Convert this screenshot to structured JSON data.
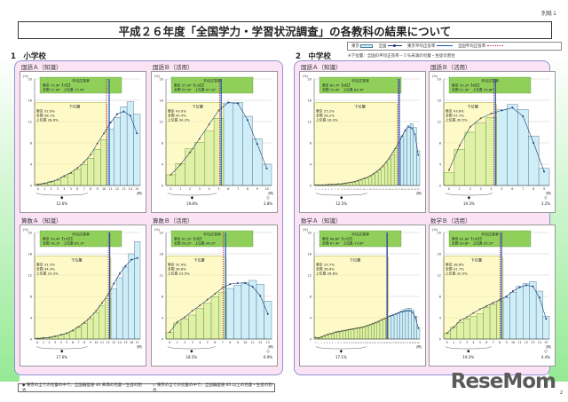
{
  "page_note": "別紙１",
  "title": "平成２６年度「全国学力・学習状況調査」の各教科の結果について",
  "legend": {
    "tokyo": "東京",
    "national": "全国",
    "tokyo_avg": "東京平均正答率",
    "national_avg": "全国平均正答率"
  },
  "note": "※下位層：全国の平均正答率－５％未満の児童・生徒の割合",
  "sections": {
    "elementary": "1　小学校",
    "middle": "2　中学校"
  },
  "y_axis_label": "児童の割合",
  "x_axis_unit": "(問)",
  "x_axis_unit2": "正答数",
  "footer": {
    "item1": "◆ 東京の全ての児童の中で、全国偏差値 40 未満の児童・生徒の割合",
    "item2": "◇ 東京の全ての児童の中で、全国偏差値 65 以上の児童・生徒の割合"
  },
  "watermark": "ReseMom",
  "page_number": "2",
  "colors": {
    "panel_bg": "#fbe3f5",
    "panel_border": "#8e95cf",
    "bar_low": "#d8f0a8",
    "bar_high": "#cfeef8",
    "avg_box": "#8fcf5a",
    "lower_box": "#fbf59a",
    "tokyo_line": "#1a56b3",
    "national_line": "#c0205a",
    "national_curve": "#1b3a7a"
  },
  "chart_data": [
    {
      "id": "elem_kokugo_a",
      "type": "bar",
      "title": "国語Ａ（知識）",
      "ylabel": "(%)",
      "ylim": [
        0,
        20
      ],
      "yticks": [
        0,
        4,
        8,
        12,
        16,
        20
      ],
      "categories": [
        "0",
        "1",
        "2",
        "3",
        "4",
        "5",
        "6",
        "7",
        "8",
        "9",
        "10",
        "11",
        "12",
        "13",
        "14",
        "15"
      ],
      "tokyo": [
        0.2,
        0.4,
        0.7,
        1.0,
        1.6,
        2.2,
        3.0,
        3.9,
        5.1,
        6.8,
        8.6,
        10.6,
        12.8,
        14.8,
        15.7,
        13.4
      ],
      "national": [
        0.2,
        0.4,
        0.7,
        1.1,
        1.8,
        2.4,
        3.3,
        4.4,
        5.8,
        7.9,
        9.8,
        11.8,
        13.4,
        13.9,
        13.1,
        9.8
      ],
      "lower_upto": 10,
      "tokyo_avg_x": 11.3,
      "national_avg_x": 10.9,
      "avg_box": {
        "title": "平均正答率",
        "line1": "東京 75.5P【7位】",
        "line2": "全国 72.9P　上位県 77.4P"
      },
      "lower_box": {
        "title": "下位層",
        "line1": "東京 32.9%",
        "line2": "全国 38.1%",
        "line3": "上位県 28.6%"
      },
      "low_pct": "12.6%",
      "high_pct": ""
    },
    {
      "id": "elem_kokugo_b",
      "type": "bar",
      "title": "国語Ｂ（活用）",
      "ylabel": "(%)",
      "ylim": [
        0,
        20
      ],
      "yticks": [
        0,
        4,
        8,
        12,
        16,
        20
      ],
      "categories": [
        "0",
        "1",
        "2",
        "3",
        "4",
        "5",
        "6",
        "7",
        "8",
        "9",
        "10"
      ],
      "tokyo": [
        2.0,
        4.1,
        6.9,
        8.1,
        10.2,
        12.6,
        15.5,
        15.6,
        13.0,
        8.8,
        4.0
      ],
      "national": [
        2.0,
        3.9,
        6.2,
        8.8,
        11.5,
        14.1,
        15.6,
        15.4,
        12.3,
        7.8,
        3.2
      ],
      "lower_upto": 5,
      "tokyo_avg_x": 5.75,
      "national_avg_x": 5.6,
      "avg_box": {
        "title": "平均正答率",
        "line1": "東京 57.2P【13位】",
        "line2": "全国 55.5P　上位県 67.2P"
      },
      "lower_box": {
        "title": "下位層",
        "line1": "東京 43.0%",
        "line2": "全国 45.4%",
        "line3": "上位県 34.3%"
      },
      "low_pct": "19.8%",
      "high_pct": "3.8%"
    },
    {
      "id": "elem_sansu_a",
      "type": "bar",
      "title": "算数Ａ（知識）",
      "ylabel": "(%)",
      "ylim": [
        0,
        20
      ],
      "yticks": [
        0,
        4,
        8,
        12,
        16,
        20
      ],
      "categories": [
        "0",
        "1",
        "2",
        "3",
        "4",
        "5",
        "6",
        "7",
        "8",
        "9",
        "10",
        "11",
        "12",
        "13",
        "14",
        "15",
        "16",
        "17"
      ],
      "tokyo": [
        0.1,
        0.2,
        0.3,
        0.5,
        0.7,
        1.0,
        1.5,
        2.2,
        2.9,
        3.7,
        4.9,
        6.3,
        7.6,
        9.4,
        11.5,
        13.5,
        16.0,
        18.3
      ],
      "national": [
        0.1,
        0.2,
        0.3,
        0.5,
        0.8,
        1.1,
        1.6,
        2.3,
        3.1,
        4.1,
        5.3,
        6.8,
        8.3,
        10.4,
        12.3,
        13.7,
        14.9,
        15.2
      ],
      "lower_upto": 12,
      "tokyo_avg_x": 12.8,
      "national_avg_x": 12.6,
      "avg_box": {
        "title": "平均正答率",
        "line1": "東京 79.4P【13位】",
        "line2": "全国 78.1P　上位県 85.1P"
      },
      "lower_box": {
        "title": "下位層",
        "line1": "東京 31.5%",
        "line2": "全国 34.3%",
        "line3": "上位県 19.3%"
      },
      "low_pct": "17.6%",
      "high_pct": ""
    },
    {
      "id": "elem_sansu_b",
      "type": "bar",
      "title": "算数Ｂ（活用）",
      "ylabel": "(%)",
      "ylim": [
        0,
        20
      ],
      "yticks": [
        0,
        4,
        8,
        12,
        16,
        20
      ],
      "categories": [
        "0",
        "1",
        "2",
        "3",
        "4",
        "5",
        "6",
        "7",
        "8",
        "9",
        "10",
        "11",
        "12",
        "13"
      ],
      "tokyo": [
        1.2,
        3.0,
        3.8,
        4.5,
        5.8,
        6.7,
        7.9,
        8.7,
        9.5,
        10.1,
        10.6,
        11.0,
        10.3,
        7.1
      ],
      "national": [
        1.3,
        3.2,
        4.1,
        5.3,
        6.3,
        7.4,
        8.5,
        9.6,
        10.3,
        10.5,
        10.5,
        9.8,
        8.1,
        4.7
      ],
      "lower_upto": 7,
      "tokyo_avg_x": 7.9,
      "national_avg_x": 7.6,
      "avg_box": {
        "title": "平均正答率",
        "line1": "東京 61.2P【5位】",
        "line2": "全国 58.2P　上位県 66.2P"
      },
      "lower_box": {
        "title": "下位層",
        "line1": "東京 32.9%",
        "line2": "全国 36.8%",
        "line3": "上位県 23.5%"
      },
      "low_pct": "18.5%",
      "high_pct": "6.9%"
    },
    {
      "id": "mid_kokugo_a",
      "type": "bar",
      "title": "国語Ａ（知識）",
      "ylabel": "(%)",
      "ylim": [
        0,
        20
      ],
      "yticks": [
        0,
        4,
        8,
        12,
        16,
        20
      ],
      "categories": [
        "1",
        "2",
        "3",
        "4",
        "5",
        "6",
        "7",
        "8",
        "9",
        "10",
        "11",
        "12",
        "13",
        "14",
        "15",
        "16",
        "17",
        "18",
        "19",
        "20",
        "21",
        "22",
        "23",
        "24",
        "25",
        "26",
        "27",
        "28",
        "29",
        "30",
        "31",
        "32",
        "33"
      ],
      "tokyo": [
        0.1,
        0.1,
        0.1,
        0.1,
        0.2,
        0.2,
        0.2,
        0.3,
        0.3,
        0.4,
        0.5,
        0.6,
        0.7,
        0.8,
        1.0,
        1.2,
        1.4,
        1.7,
        2.0,
        2.4,
        2.9,
        3.5,
        4.1,
        4.9,
        5.8,
        6.9,
        8.0,
        9.2,
        10.2,
        11.2,
        11.6,
        10.9,
        6.5
      ],
      "national": [
        0.1,
        0.1,
        0.1,
        0.1,
        0.2,
        0.2,
        0.2,
        0.3,
        0.3,
        0.4,
        0.5,
        0.6,
        0.7,
        0.9,
        1.1,
        1.3,
        1.5,
        1.8,
        2.2,
        2.6,
        3.1,
        3.7,
        4.4,
        5.2,
        6.2,
        7.1,
        8.1,
        9.3,
        10.4,
        11.0,
        10.8,
        9.6,
        5.7
      ],
      "lower_upto": 25,
      "tokyo_avg_x": 26.6,
      "national_avg_x": 26.2,
      "avg_box": {
        "title": "平均正答率",
        "line1": "東京 80.7P【8位】",
        "line2": "全国 79.4P　上位県 84.4P"
      },
      "lower_box": {
        "title": "下位層",
        "line1": "東京 25.2%",
        "line2": "全国 28.2%",
        "line3": "上位県 18.0%"
      },
      "low_pct": "12.5%",
      "high_pct": ""
    },
    {
      "id": "mid_kokugo_b",
      "type": "bar",
      "title": "国語Ｂ（活用）",
      "ylabel": "(%)",
      "ylim": [
        0,
        20
      ],
      "yticks": [
        0,
        4,
        8,
        12,
        16,
        20
      ],
      "categories": [
        "0",
        "1",
        "2",
        "3",
        "4",
        "5",
        "6",
        "7",
        "8",
        "9"
      ],
      "tokyo": [
        2.4,
        6.8,
        10.0,
        11.7,
        12.8,
        14.2,
        15.2,
        14.3,
        9.3,
        3.2
      ],
      "national": [
        2.9,
        7.5,
        11.0,
        12.6,
        13.5,
        14.1,
        14.6,
        13.0,
        8.0,
        2.6
      ],
      "lower_upto": 4,
      "tokyo_avg_x": 4.9,
      "national_avg_x": 4.75,
      "avg_box": {
        "title": "平均正答率",
        "line1": "東京 53.2P【6位】",
        "line2": "全国 51.0P　上位県 55.8P"
      },
      "lower_box": {
        "title": "下位層",
        "line1": "東京 43.6%",
        "line2": "全国 47.7%",
        "line3": "上位県 39.5%"
      },
      "low_pct": "19.3%",
      "high_pct": "3.2%"
    },
    {
      "id": "mid_sugaku_a",
      "type": "bar",
      "title": "数学Ａ（知識）",
      "ylabel": "(%)",
      "ylim": [
        0,
        20
      ],
      "yticks": [
        0,
        4,
        8,
        12,
        16,
        20
      ],
      "categories": [
        "0",
        "1",
        "2",
        "3",
        "4",
        "5",
        "6",
        "7",
        "8",
        "9",
        "10",
        "11",
        "12",
        "13",
        "14",
        "15",
        "16",
        "17",
        "18",
        "19",
        "20",
        "21",
        "22",
        "23",
        "24",
        "25",
        "26",
        "27",
        "28",
        "29",
        "30",
        "31",
        "32",
        "33",
        "34",
        "35",
        "36"
      ],
      "tokyo": [
        0.3,
        0.2,
        0.3,
        0.5,
        0.7,
        0.9,
        1.0,
        1.2,
        1.3,
        1.4,
        1.5,
        1.6,
        1.7,
        1.8,
        1.9,
        2.0,
        2.1,
        2.2,
        2.4,
        2.5,
        2.7,
        2.9,
        3.1,
        3.4,
        3.7,
        3.9,
        4.2,
        4.4,
        4.6,
        4.9,
        5.2,
        5.5,
        5.7,
        5.8,
        5.4,
        4.3,
        2.2
      ],
      "national": [
        0.3,
        0.2,
        0.4,
        0.6,
        0.8,
        1.0,
        1.1,
        1.3,
        1.4,
        1.5,
        1.6,
        1.7,
        1.8,
        1.9,
        2.0,
        2.1,
        2.2,
        2.3,
        2.5,
        2.7,
        2.9,
        3.1,
        3.3,
        3.6,
        3.8,
        4.0,
        4.3,
        4.5,
        4.7,
        4.9,
        5.1,
        5.2,
        5.3,
        5.3,
        5.0,
        4.0,
        2.0
      ],
      "lower_upto": 25,
      "tokyo_avg_x": 25.6,
      "national_avg_x": 25.4,
      "avg_box": {
        "title": "平均正答率",
        "line1": "東京 68.8P【12位】",
        "line2": "全国 67.4P　上位県 73.6P"
      },
      "lower_box": {
        "title": "下位層",
        "line1": "東京 33.7%",
        "line2": "全国 36.6%",
        "line3": "上位県 26.8%"
      },
      "low_pct": "17.1%",
      "high_pct": ""
    },
    {
      "id": "mid_sugaku_b",
      "type": "bar",
      "title": "数学Ｂ（活用）",
      "ylabel": "(%)",
      "ylim": [
        0,
        20
      ],
      "yticks": [
        0,
        4,
        8,
        12,
        16,
        20
      ],
      "categories": [
        "0",
        "1",
        "2",
        "3",
        "4",
        "5",
        "6",
        "7",
        "8",
        "9",
        "10",
        "11",
        "12",
        "13",
        "14",
        "15"
      ],
      "tokyo": [
        1.1,
        2.2,
        3.1,
        3.8,
        4.3,
        4.8,
        5.9,
        6.5,
        7.1,
        7.8,
        8.8,
        9.9,
        10.4,
        10.8,
        9.0,
        4.3
      ],
      "national": [
        1.1,
        2.2,
        3.5,
        4.1,
        4.9,
        5.6,
        6.2,
        6.8,
        7.4,
        8.0,
        9.0,
        9.7,
        10.1,
        9.9,
        7.8,
        3.8
      ],
      "lower_upto": 8,
      "tokyo_avg_x": 8.75,
      "national_avg_x": 8.55,
      "avg_box": {
        "title": "平均正答率",
        "line1": "東京 61.8P【10位】",
        "line2": "全国 59.8P　上位県 65.5P"
      },
      "lower_box": {
        "title": "下位層",
        "line1": "東京 38.6%",
        "line2": "全国 41.7%",
        "line3": "上位県 32.9%"
      },
      "low_pct": "19.3%",
      "high_pct": "4.4%"
    }
  ]
}
